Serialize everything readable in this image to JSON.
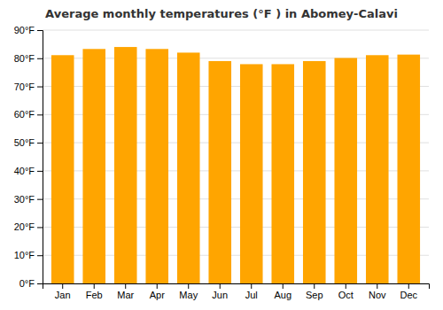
{
  "chart_data": {
    "type": "bar",
    "title": "Average monthly temperatures (°F ) in Abomey-Calavi",
    "categories": [
      "Jan",
      "Feb",
      "Mar",
      "Apr",
      "May",
      "Jun",
      "Jul",
      "Aug",
      "Sep",
      "Oct",
      "Nov",
      "Dec"
    ],
    "values": [
      81.1,
      83.3,
      84.0,
      83.3,
      82.0,
      79.0,
      77.9,
      77.9,
      79.0,
      80.1,
      81.1,
      81.3
    ],
    "color": "#FFA500",
    "ylim": [
      0,
      90
    ],
    "yticks": [
      {
        "value": 0,
        "label": "0°F"
      },
      {
        "value": 10,
        "label": "10°F"
      },
      {
        "value": 20,
        "label": "20°F"
      },
      {
        "value": 30,
        "label": "30°F"
      },
      {
        "value": 40,
        "label": "40°F"
      },
      {
        "value": 50,
        "label": "50°F"
      },
      {
        "value": 60,
        "label": "60°F"
      },
      {
        "value": 70,
        "label": "70°F"
      },
      {
        "value": 80,
        "label": "80°F"
      },
      {
        "value": 90,
        "label": "90°F"
      }
    ],
    "grid": true
  }
}
